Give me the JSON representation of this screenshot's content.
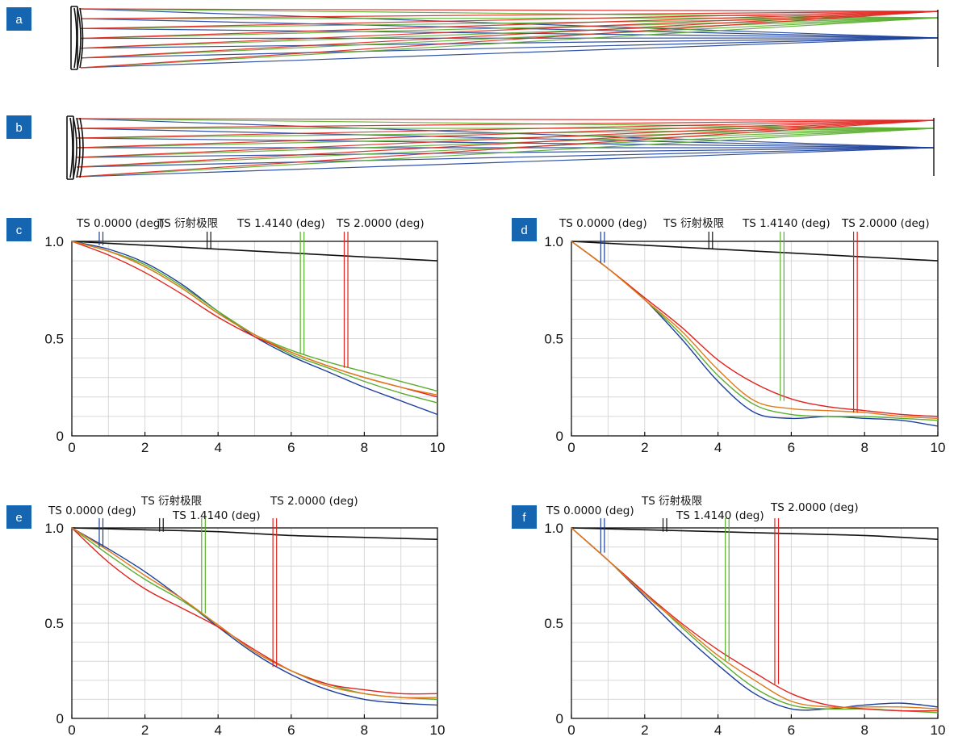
{
  "colors": {
    "badge": "#1565b0",
    "blue": "#1b3f9a",
    "green": "#5aae2e",
    "red": "#e0231e",
    "orange": "#e07a1a",
    "black": "#111111",
    "grid": "#d8d8d8"
  },
  "ray_panels": [
    {
      "label": "a"
    },
    {
      "label": "b"
    }
  ],
  "chart_data": [
    {
      "id": "c",
      "type": "line",
      "xlim": [
        0,
        10
      ],
      "ylim": [
        0,
        1
      ],
      "xticks": [
        "0",
        "2",
        "4",
        "6",
        "8",
        "10"
      ],
      "yticks": [
        "0",
        "0.5",
        "1.0"
      ],
      "field_labels": [
        "TS 0.0000 (deg)",
        "TS 衍射极限",
        "TS 1.4140 (deg)",
        "TS 2.0000 (deg)"
      ],
      "field_markers": [
        {
          "color": "blue",
          "x": [
            0.75,
            0.85
          ],
          "y_end": 0.98
        },
        {
          "color": "black",
          "x": [
            3.7,
            3.8
          ],
          "y_end": 0.96
        },
        {
          "color": "green",
          "x": [
            6.25,
            6.35
          ],
          "y_end": 0.42
        },
        {
          "color": "red",
          "x": [
            7.45,
            7.55
          ],
          "y_end": 0.35
        }
      ],
      "series": [
        {
          "color": "black",
          "x": [
            0,
            2,
            4,
            6,
            8,
            10
          ],
          "y": [
            1.0,
            0.98,
            0.96,
            0.94,
            0.92,
            0.9
          ]
        },
        {
          "color": "blue",
          "x": [
            0,
            1,
            2,
            3,
            4,
            5,
            6,
            7,
            8,
            9,
            10
          ],
          "y": [
            1.0,
            0.96,
            0.89,
            0.78,
            0.64,
            0.51,
            0.41,
            0.33,
            0.25,
            0.18,
            0.11
          ]
        },
        {
          "color": "green",
          "x": [
            0,
            1,
            2,
            3,
            4,
            5,
            6,
            7,
            8,
            9,
            10
          ],
          "y": [
            1.0,
            0.95,
            0.87,
            0.76,
            0.63,
            0.52,
            0.44,
            0.38,
            0.33,
            0.28,
            0.23
          ]
        },
        {
          "color": "green",
          "x": [
            0,
            1,
            2,
            3,
            4,
            5,
            6,
            7,
            8,
            9,
            10
          ],
          "y": [
            1.0,
            0.95,
            0.88,
            0.77,
            0.64,
            0.52,
            0.42,
            0.35,
            0.28,
            0.22,
            0.17
          ]
        },
        {
          "color": "red",
          "x": [
            0,
            1,
            2,
            3,
            4,
            5,
            6,
            7,
            8,
            9,
            10
          ],
          "y": [
            1.0,
            0.93,
            0.84,
            0.73,
            0.61,
            0.51,
            0.43,
            0.36,
            0.3,
            0.25,
            0.2
          ]
        },
        {
          "color": "orange",
          "x": [
            0,
            1,
            2,
            3,
            4,
            5,
            6,
            7,
            8,
            9,
            10
          ],
          "y": [
            1.0,
            0.95,
            0.87,
            0.76,
            0.63,
            0.52,
            0.43,
            0.36,
            0.3,
            0.25,
            0.21
          ]
        }
      ]
    },
    {
      "id": "d",
      "type": "line",
      "xlim": [
        0,
        10
      ],
      "ylim": [
        0,
        1
      ],
      "xticks": [
        "0",
        "2",
        "4",
        "6",
        "8",
        "10"
      ],
      "yticks": [
        "0",
        "0.5",
        "1.0"
      ],
      "field_labels": [
        "TS 0.0000 (deg)",
        "TS 衍射极限",
        "TS 1.4140 (deg)",
        "TS 2.0000 (deg)"
      ],
      "field_markers": [
        {
          "color": "blue",
          "x": [
            0.8,
            0.9
          ],
          "y_end": 0.89
        },
        {
          "color": "black",
          "x": [
            3.75,
            3.85
          ],
          "y_end": 0.96
        },
        {
          "color": "green",
          "x": [
            5.7,
            5.8
          ],
          "y_end": 0.18
        },
        {
          "color": "red",
          "x": [
            7.7,
            7.8
          ],
          "y_end": 0.12
        }
      ],
      "series": [
        {
          "color": "black",
          "x": [
            0,
            2,
            4,
            6,
            8,
            10
          ],
          "y": [
            1.0,
            0.98,
            0.96,
            0.94,
            0.92,
            0.9
          ]
        },
        {
          "color": "blue",
          "x": [
            0,
            1,
            2,
            3,
            4,
            5,
            6,
            7,
            8,
            9,
            10
          ],
          "y": [
            1.0,
            0.86,
            0.7,
            0.5,
            0.28,
            0.12,
            0.09,
            0.1,
            0.09,
            0.08,
            0.05
          ]
        },
        {
          "color": "green",
          "x": [
            0,
            1,
            2,
            3,
            4,
            5,
            6,
            7,
            8,
            9,
            10
          ],
          "y": [
            1.0,
            0.86,
            0.7,
            0.52,
            0.31,
            0.16,
            0.11,
            0.1,
            0.1,
            0.09,
            0.08
          ]
        },
        {
          "color": "red",
          "x": [
            0,
            1,
            2,
            3,
            4,
            5,
            6,
            7,
            8,
            9,
            10
          ],
          "y": [
            1.0,
            0.86,
            0.71,
            0.56,
            0.39,
            0.27,
            0.19,
            0.15,
            0.13,
            0.11,
            0.1
          ]
        },
        {
          "color": "orange",
          "x": [
            0,
            1,
            2,
            3,
            4,
            5,
            6,
            7,
            8,
            9,
            10
          ],
          "y": [
            1.0,
            0.86,
            0.7,
            0.54,
            0.34,
            0.18,
            0.14,
            0.13,
            0.12,
            0.1,
            0.09
          ]
        }
      ]
    },
    {
      "id": "e",
      "type": "line",
      "xlim": [
        0,
        10
      ],
      "ylim": [
        0,
        1
      ],
      "xticks": [
        "0",
        "2",
        "4",
        "6",
        "8",
        "10"
      ],
      "yticks": [
        "0",
        "0.5",
        "1.0"
      ],
      "field_labels": [
        "TS 0.0000 (deg)",
        "TS 衍射极限",
        "TS 1.4140 (deg)",
        "TS 2.0000 (deg)"
      ],
      "field_markers": [
        {
          "color": "blue",
          "x": [
            0.75,
            0.85
          ],
          "y_end": 0.9
        },
        {
          "color": "black",
          "x": [
            2.4,
            2.5
          ],
          "y_end": 0.98
        },
        {
          "color": "green",
          "x": [
            3.55,
            3.65
          ],
          "y_end": 0.55
        },
        {
          "color": "red",
          "x": [
            5.5,
            5.6
          ],
          "y_end": 0.27
        }
      ],
      "series": [
        {
          "color": "black",
          "x": [
            0,
            2,
            4,
            6,
            8,
            10
          ],
          "y": [
            1.0,
            0.99,
            0.98,
            0.96,
            0.95,
            0.94
          ]
        },
        {
          "color": "blue",
          "x": [
            0,
            1,
            2,
            3,
            4,
            5,
            6,
            7,
            8,
            9,
            10
          ],
          "y": [
            1.0,
            0.89,
            0.77,
            0.63,
            0.48,
            0.34,
            0.23,
            0.15,
            0.1,
            0.08,
            0.07
          ]
        },
        {
          "color": "green",
          "x": [
            0,
            1,
            2,
            3,
            4,
            5,
            6,
            7,
            8,
            9,
            10
          ],
          "y": [
            1.0,
            0.86,
            0.73,
            0.62,
            0.49,
            0.35,
            0.25,
            0.18,
            0.13,
            0.11,
            0.1
          ]
        },
        {
          "color": "red",
          "x": [
            0,
            1,
            2,
            3,
            4,
            5,
            6,
            7,
            8,
            9,
            10
          ],
          "y": [
            1.0,
            0.82,
            0.68,
            0.58,
            0.48,
            0.36,
            0.25,
            0.18,
            0.15,
            0.13,
            0.13
          ]
        },
        {
          "color": "orange",
          "x": [
            0,
            1,
            2,
            3,
            4,
            5,
            6,
            7,
            8,
            9,
            10
          ],
          "y": [
            1.0,
            0.88,
            0.75,
            0.63,
            0.49,
            0.35,
            0.25,
            0.17,
            0.13,
            0.11,
            0.11
          ]
        }
      ]
    },
    {
      "id": "f",
      "type": "line",
      "xlim": [
        0,
        10
      ],
      "ylim": [
        0,
        1
      ],
      "xticks": [
        "0",
        "2",
        "4",
        "6",
        "8",
        "10"
      ],
      "yticks": [
        "0",
        "0.5",
        "1.0"
      ],
      "field_labels": [
        "TS 0.0000 (deg)",
        "TS 衍射极限",
        "TS 1.4140 (deg)",
        "TS 2.0000 (deg)"
      ],
      "field_markers": [
        {
          "color": "blue",
          "x": [
            0.8,
            0.9
          ],
          "y_end": 0.87
        },
        {
          "color": "black",
          "x": [
            2.5,
            2.6
          ],
          "y_end": 0.98
        },
        {
          "color": "green",
          "x": [
            4.2,
            4.3
          ],
          "y_end": 0.3
        },
        {
          "color": "red",
          "x": [
            5.55,
            5.65
          ],
          "y_end": 0.18
        }
      ],
      "series": [
        {
          "color": "black",
          "x": [
            0,
            2,
            4,
            6,
            8,
            10
          ],
          "y": [
            1.0,
            0.99,
            0.98,
            0.97,
            0.96,
            0.94
          ]
        },
        {
          "color": "blue",
          "x": [
            0,
            1,
            2,
            3,
            4,
            5,
            6,
            7,
            8,
            9,
            10
          ],
          "y": [
            1.0,
            0.83,
            0.64,
            0.45,
            0.28,
            0.13,
            0.05,
            0.05,
            0.07,
            0.08,
            0.06
          ]
        },
        {
          "color": "green",
          "x": [
            0,
            1,
            2,
            3,
            4,
            5,
            6,
            7,
            8,
            9,
            10
          ],
          "y": [
            1.0,
            0.83,
            0.66,
            0.48,
            0.31,
            0.16,
            0.07,
            0.05,
            0.05,
            0.04,
            0.03
          ]
        },
        {
          "color": "red",
          "x": [
            0,
            1,
            2,
            3,
            4,
            5,
            6,
            7,
            8,
            9,
            10
          ],
          "y": [
            1.0,
            0.83,
            0.66,
            0.5,
            0.36,
            0.24,
            0.13,
            0.07,
            0.05,
            0.04,
            0.04
          ]
        },
        {
          "color": "orange",
          "x": [
            0,
            1,
            2,
            3,
            4,
            5,
            6,
            7,
            8,
            9,
            10
          ],
          "y": [
            1.0,
            0.83,
            0.65,
            0.49,
            0.33,
            0.2,
            0.09,
            0.06,
            0.06,
            0.06,
            0.05
          ]
        }
      ]
    }
  ]
}
